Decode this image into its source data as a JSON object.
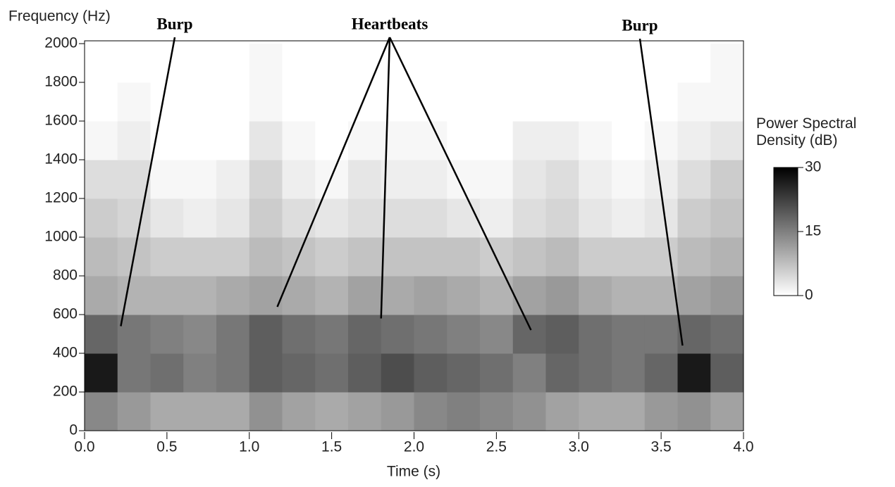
{
  "chart_data": {
    "type": "heatmap",
    "xlabel": "Time (s)",
    "ylabel": "Frequency (Hz)",
    "xlim": [
      0,
      4
    ],
    "ylim": [
      0,
      2000
    ],
    "xticks": [
      {
        "value": 0,
        "label": "0.0"
      },
      {
        "value": 0.5,
        "label": "0.5"
      },
      {
        "value": 1,
        "label": "1.0"
      },
      {
        "value": 1.5,
        "label": "1.5"
      },
      {
        "value": 2,
        "label": "2.0"
      },
      {
        "value": 2.5,
        "label": "2.5"
      },
      {
        "value": 3,
        "label": "3.0"
      },
      {
        "value": 3.5,
        "label": "3.5"
      },
      {
        "value": 4,
        "label": "4.0"
      }
    ],
    "yticks": [
      0,
      200,
      400,
      600,
      800,
      1000,
      1200,
      1400,
      1600,
      1800,
      2000
    ],
    "x_bins": [
      0,
      0.2,
      0.4,
      0.6,
      0.8,
      1,
      1.2,
      1.4,
      1.6,
      1.8,
      2,
      2.2,
      2.4,
      2.6,
      2.8,
      3,
      3.2,
      3.4,
      3.6,
      3.8,
      4
    ],
    "y_bins": [
      0,
      200,
      400,
      600,
      800,
      1000,
      1200,
      1400,
      1600,
      1800,
      2000
    ],
    "values": [
      [
        14,
        12,
        10,
        10,
        10,
        13,
        11,
        10,
        11,
        12,
        14,
        15,
        14,
        13,
        11,
        10,
        10,
        12,
        13,
        11
      ],
      [
        27,
        16,
        17,
        15,
        16,
        19,
        18,
        17,
        19,
        21,
        19,
        18,
        17,
        15,
        18,
        17,
        16,
        18,
        27,
        19
      ],
      [
        18,
        16,
        15,
        14,
        16,
        19,
        17,
        16,
        18,
        17,
        16,
        15,
        14,
        18,
        19,
        17,
        16,
        16,
        18,
        17
      ],
      [
        10,
        9,
        9,
        9,
        10,
        11,
        10,
        9,
        11,
        10,
        11,
        10,
        9,
        11,
        12,
        10,
        9,
        9,
        11,
        12
      ],
      [
        8,
        7,
        6,
        6,
        6,
        8,
        7,
        6,
        7,
        7,
        7,
        7,
        6,
        7,
        8,
        6,
        6,
        6,
        8,
        9
      ],
      [
        6,
        5,
        3,
        2,
        3,
        6,
        4,
        3,
        4,
        4,
        4,
        3,
        2,
        4,
        5,
        3,
        2,
        3,
        6,
        7
      ],
      [
        4,
        4,
        1,
        1,
        2,
        5,
        2,
        1,
        3,
        2,
        2,
        1,
        1,
        3,
        4,
        2,
        1,
        2,
        4,
        6
      ],
      [
        1,
        2,
        0,
        0,
        0,
        3,
        1,
        0,
        1,
        1,
        1,
        0,
        0,
        2,
        2,
        1,
        0,
        1,
        2,
        3
      ],
      [
        0,
        1,
        0,
        0,
        0,
        1,
        0,
        0,
        0,
        0,
        0,
        0,
        0,
        0,
        0,
        0,
        0,
        0,
        1,
        1
      ],
      [
        0,
        0,
        0,
        0,
        0,
        1,
        0,
        0,
        0,
        0,
        0,
        0,
        0,
        0,
        0,
        0,
        0,
        0,
        0,
        1
      ]
    ],
    "colorbar": {
      "title": "Power Spectral Density (dB)",
      "lim": [
        0,
        30
      ],
      "ticks": [
        30,
        15,
        0
      ]
    },
    "annotations": [
      {
        "text": "Burp",
        "targets": [
          [
            0.22,
            540
          ]
        ]
      },
      {
        "text": "Heartbeats",
        "targets": [
          [
            1.17,
            640
          ],
          [
            1.8,
            580
          ],
          [
            2.71,
            520
          ]
        ]
      },
      {
        "text": "Burp",
        "targets": [
          [
            3.63,
            440
          ]
        ]
      }
    ]
  }
}
